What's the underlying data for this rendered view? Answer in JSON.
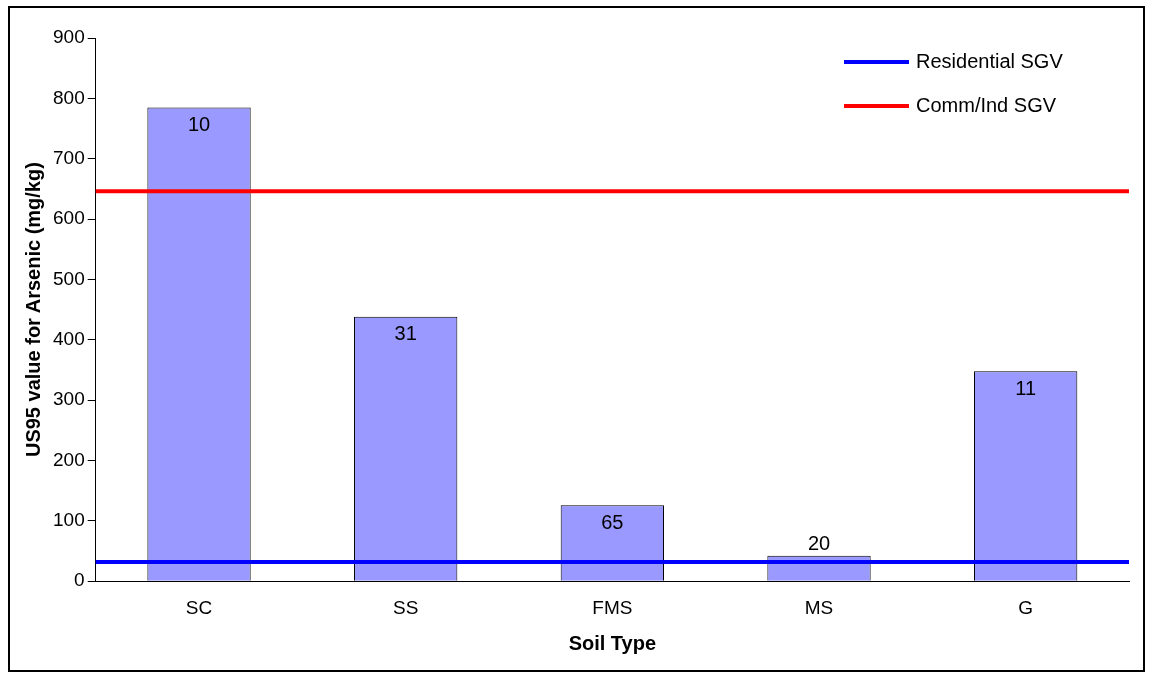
{
  "chart_data": {
    "type": "bar",
    "xlabel": "Soil Type",
    "ylabel": "US95 value for Arsenic (mg/kg)",
    "categories": [
      "SC",
      "SS",
      "FMS",
      "MS",
      "G"
    ],
    "values": [
      785,
      438,
      126,
      42,
      348
    ],
    "annotations": [
      {
        "text": "10",
        "x": "SC",
        "y": 785
      },
      {
        "text": "31",
        "x": "SS",
        "y": 438
      },
      {
        "text": "65",
        "x": "FMS",
        "y": 126
      },
      {
        "text": "20",
        "x": "MS",
        "y": 42
      },
      {
        "text": "11",
        "x": "G",
        "y": 348
      }
    ],
    "color": "#9999ff",
    "ylim": [
      0,
      900
    ],
    "yticks": [
      0,
      100,
      200,
      300,
      400,
      500,
      600,
      700,
      800,
      900
    ],
    "grid": false,
    "legend": "top right",
    "ref_lines": [
      {
        "axis": "y",
        "value": 32,
        "label": "Residential SGV",
        "color": "#0000ff"
      },
      {
        "axis": "y",
        "value": 646,
        "label": "Comm/Ind SGV",
        "color": "#ff0000"
      }
    ]
  }
}
